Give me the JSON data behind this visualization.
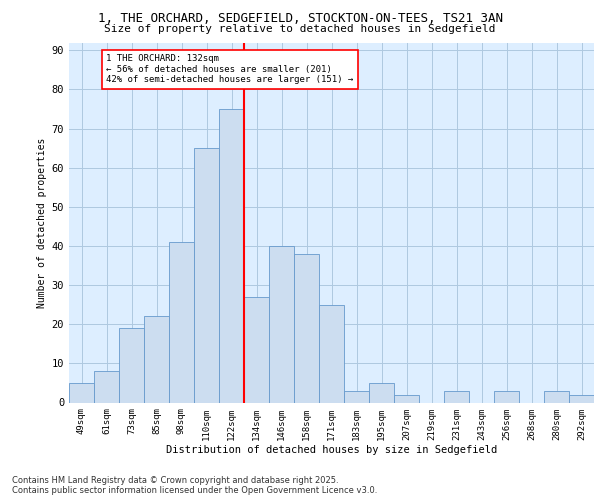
{
  "title_line1": "1, THE ORCHARD, SEDGEFIELD, STOCKTON-ON-TEES, TS21 3AN",
  "title_line2": "Size of property relative to detached houses in Sedgefield",
  "xlabel": "Distribution of detached houses by size in Sedgefield",
  "ylabel": "Number of detached properties",
  "categories": [
    "49sqm",
    "61sqm",
    "73sqm",
    "85sqm",
    "98sqm",
    "110sqm",
    "122sqm",
    "134sqm",
    "146sqm",
    "158sqm",
    "171sqm",
    "183sqm",
    "195sqm",
    "207sqm",
    "219sqm",
    "231sqm",
    "243sqm",
    "256sqm",
    "268sqm",
    "280sqm",
    "292sqm"
  ],
  "values": [
    5,
    8,
    19,
    22,
    41,
    65,
    75,
    27,
    40,
    38,
    25,
    3,
    5,
    2,
    0,
    3,
    0,
    3,
    0,
    3,
    2
  ],
  "bar_color": "#ccddf0",
  "bar_edge_color": "#6699cc",
  "grid_color": "#aec8e0",
  "bg_color": "#ddeeff",
  "vline_color": "red",
  "annotation_text": "1 THE ORCHARD: 132sqm\n← 56% of detached houses are smaller (201)\n42% of semi-detached houses are larger (151) →",
  "annotation_box_color": "white",
  "annotation_box_edge": "red",
  "ylim": [
    0,
    92
  ],
  "yticks": [
    0,
    10,
    20,
    30,
    40,
    50,
    60,
    70,
    80,
    90
  ],
  "footer_line1": "Contains HM Land Registry data © Crown copyright and database right 2025.",
  "footer_line2": "Contains public sector information licensed under the Open Government Licence v3.0."
}
